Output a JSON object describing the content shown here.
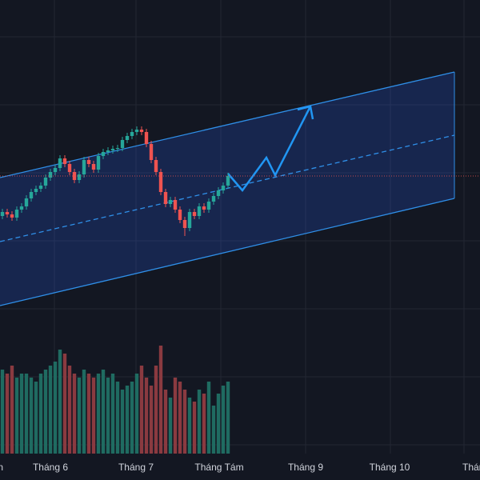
{
  "chart_data": {
    "type": "candlestick",
    "x_labels": [
      "n",
      "Tháng 6",
      "Tháng 7",
      "Tháng Tám",
      "Tháng 9",
      "Tháng 10",
      "Tháng"
    ],
    "open": [
      330,
      335,
      332,
      328,
      338,
      342,
      352,
      360,
      364,
      368,
      378,
      385,
      390,
      402,
      395,
      385,
      375,
      382,
      400,
      395,
      388,
      405,
      410,
      412,
      414,
      415,
      425,
      430,
      435,
      438,
      435,
      420,
      400,
      385,
      360,
      345,
      350,
      338,
      325,
      315,
      335,
      330,
      342,
      338,
      348,
      355,
      362,
      368
    ],
    "high": [
      339,
      339,
      336,
      342,
      346,
      356,
      364,
      368,
      372,
      382,
      389,
      394,
      406,
      406,
      399,
      389,
      386,
      404,
      404,
      399,
      409,
      414,
      416,
      418,
      419,
      429,
      434,
      439,
      442,
      442,
      439,
      424,
      404,
      389,
      364,
      354,
      354,
      342,
      329,
      339,
      339,
      346,
      346,
      352,
      359,
      366,
      372,
      384
    ],
    "low": [
      326,
      328,
      324,
      324,
      334,
      338,
      348,
      356,
      360,
      364,
      374,
      381,
      386,
      391,
      381,
      371,
      371,
      378,
      391,
      384,
      384,
      401,
      406,
      408,
      410,
      411,
      421,
      426,
      431,
      431,
      416,
      396,
      381,
      356,
      341,
      341,
      334,
      321,
      305,
      311,
      326,
      326,
      334,
      334,
      344,
      351,
      358,
      364
    ],
    "close": [
      335,
      332,
      328,
      338,
      342,
      352,
      360,
      364,
      368,
      378,
      385,
      390,
      402,
      395,
      385,
      375,
      382,
      400,
      395,
      388,
      405,
      410,
      412,
      414,
      415,
      425,
      430,
      435,
      438,
      435,
      420,
      400,
      385,
      360,
      345,
      350,
      338,
      325,
      315,
      335,
      330,
      342,
      338,
      348,
      355,
      362,
      368,
      380
    ],
    "volume": [
      105,
      100,
      110,
      95,
      100,
      100,
      95,
      90,
      100,
      105,
      110,
      115,
      130,
      125,
      110,
      100,
      95,
      105,
      100,
      95,
      100,
      105,
      95,
      100,
      90,
      80,
      85,
      90,
      100,
      110,
      95,
      85,
      110,
      135,
      80,
      70,
      95,
      90,
      80,
      70,
      65,
      80,
      75,
      90,
      60,
      75,
      85,
      90
    ],
    "ylim": [
      0,
      600
    ],
    "volume_ylim": [
      0,
      167
    ],
    "up_color": "#26a69a",
    "down_color": "#ef5350",
    "up_volume_color": "#1f6b61",
    "down_volume_color": "#8a3a40"
  }
}
